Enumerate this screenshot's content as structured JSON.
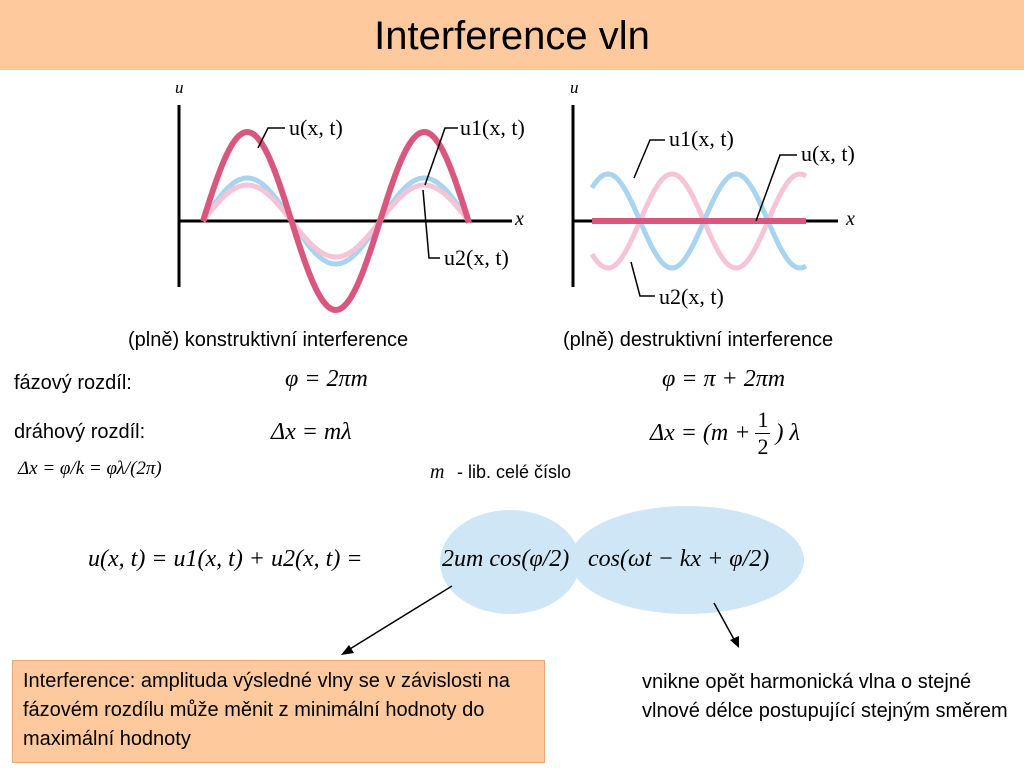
{
  "slide": {
    "title": "Interference vln"
  },
  "diagram_left": {
    "axis_u": "u",
    "axis_x": "x",
    "label_u": "u(x, t)",
    "label_u1": "u1(x, t)",
    "label_u2": "u2(x, t)",
    "caption": "(plně) konstruktivní interference"
  },
  "diagram_right": {
    "axis_u": "u",
    "axis_x": "x",
    "label_u1": "u1(x, t)",
    "label_u": "u(x, t)",
    "label_u2": "u2(x, t)",
    "caption": "(plně) destruktivní interference"
  },
  "labels": {
    "phase_diff": "fázový rozdíl:",
    "path_diff": "dráhový rozdíl:",
    "path_formula": "Δx = φ/k = φλ/(2π)",
    "m_note": "- lib. celé číslo",
    "m_symbol": "m"
  },
  "formulas": {
    "phase_constructive": "φ = 2πm",
    "phase_destructive": "φ = π + 2πm",
    "path_constructive": "Δx = mλ",
    "path_destructive_left": "Δx = (m +",
    "path_destructive_num": "1",
    "path_destructive_den": "2",
    "path_destructive_right": ") λ",
    "main_left": "u(x, t) = u1(x, t) + u2(x, t) =",
    "main_amp": "2um cos(φ/2)",
    "main_wave": "cos(ωt − kx + φ/2)"
  },
  "boxes": {
    "interference_note": "Interference: amplituda výsledné vlny se v závislosti na fázovém rozdílu může měnit z minimální hodnoty do maximální hodnoty",
    "wave_note": "vnikne opět harmonická vlna o stejné vlnové délce postupující stejným směrem"
  },
  "colors": {
    "title_bg": "#fdc99d",
    "wave_result": "#d9577f",
    "wave_u1": "#a9d4ef",
    "wave_u2": "#f6c4d6",
    "highlight": "#cfe6f7"
  }
}
